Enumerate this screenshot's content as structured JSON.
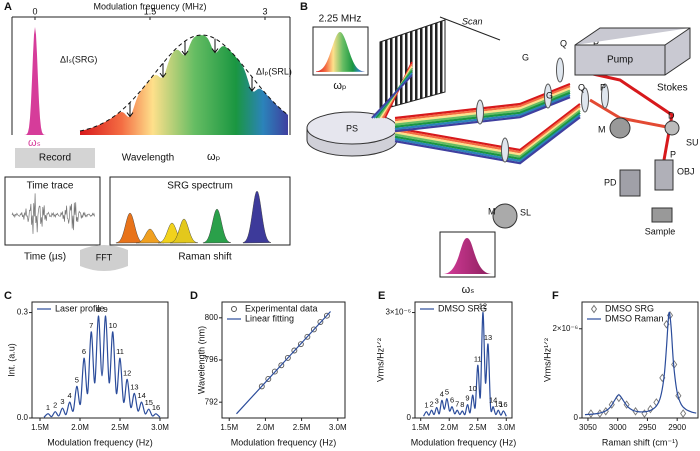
{
  "panel_a": {
    "letter": "A",
    "axis_title": "Modulation frequency (MHz)",
    "axis_ticks": [
      "0",
      "1.5",
      "3"
    ],
    "srg_label": "ΔIₛ(SRG)",
    "srl_label": "ΔIₚ(SRL)",
    "omega_s": "ωₛ",
    "record": "Record",
    "wavelength": "Wavelength",
    "omega_p": "ωₚ",
    "time_trace": "Time trace",
    "time_axis": "Time (µs)",
    "fft": "FFT",
    "srg_spectrum": "SRG spectrum",
    "raman_shift": "Raman shift"
  },
  "panel_b": {
    "letter": "B",
    "labels": [
      "2.25 MHz",
      "ωₚ",
      "Scan",
      "PS",
      "M",
      "SL",
      "G",
      "Q",
      "P",
      "Pump",
      "Stokes",
      "G",
      "Q",
      "P",
      "M",
      "D",
      "SU",
      "P",
      "OBJ",
      "PD",
      "Sample",
      "ωₛ"
    ]
  },
  "chart_data": [
    {
      "type": "line",
      "letter": "C",
      "xlabel": "Modulation frequency (Hz)",
      "ylabel": "Int. (a.u)",
      "xlim": [
        1400000,
        3100000
      ],
      "xticks": [
        {
          "value": 1500000,
          "label": "1.5M"
        },
        {
          "value": 2000000,
          "label": "2.0M"
        },
        {
          "value": 2500000,
          "label": "2.5M"
        },
        {
          "value": 3000000,
          "label": "3.0M"
        }
      ],
      "ylim": [
        0,
        0.33
      ],
      "yticks": [
        {
          "value": 0,
          "label": "0.0"
        },
        0.3
      ],
      "legend": "upper left",
      "annotations": [
        "1",
        "2",
        "3",
        "4",
        "5",
        "6",
        "7",
        "8",
        "9",
        "10",
        "11",
        "12",
        "13",
        "14",
        "15",
        "16"
      ],
      "series": [
        {
          "name": "Laser profile",
          "type": "line",
          "color": "#2b4c9b",
          "x": [
            1550000,
            1600000,
            1645000,
            1690000,
            1735000,
            1780000,
            1825000,
            1870000,
            1915000,
            1960000,
            2005000,
            2050000,
            2095000,
            2140000,
            2185000,
            2230000,
            2275000,
            2320000,
            2365000,
            2410000,
            2455000,
            2500000,
            2545000,
            2590000,
            2635000,
            2680000,
            2725000,
            2770000,
            2815000,
            2860000,
            2905000,
            2950000,
            3000000
          ],
          "values": [
            0.002,
            0.012,
            0.004,
            0.018,
            0.006,
            0.028,
            0.01,
            0.045,
            0.02,
            0.09,
            0.04,
            0.17,
            0.07,
            0.245,
            0.1,
            0.29,
            0.12,
            0.29,
            0.1,
            0.245,
            0.07,
            0.17,
            0.045,
            0.11,
            0.03,
            0.07,
            0.02,
            0.045,
            0.012,
            0.025,
            0.006,
            0.012,
            0.002
          ]
        }
      ]
    },
    {
      "type": "scatter",
      "letter": "D",
      "xlabel": "Modulation frequency (Hz)",
      "ylabel": "Wavelength (nm)",
      "xlim": [
        1400000,
        3100000
      ],
      "xticks": [
        {
          "value": 1500000,
          "label": "1.5M"
        },
        {
          "value": 2000000,
          "label": "2.0M"
        },
        {
          "value": 2500000,
          "label": "2.5M"
        },
        {
          "value": 3000000,
          "label": "3.0M"
        }
      ],
      "ylim": [
        790.5,
        801.5
      ],
      "yticks": [
        792,
        796,
        800
      ],
      "legend": "upper left",
      "series": [
        {
          "name": "Experimental data",
          "type": "scatter",
          "marker": "circle",
          "color": "#555555",
          "x": [
            1950000,
            2040000,
            2130000,
            2220000,
            2310000,
            2400000,
            2490000,
            2580000,
            2670000,
            2760000,
            2850000
          ],
          "values": [
            793.5,
            794.2,
            794.9,
            795.5,
            796.2,
            796.9,
            797.5,
            798.2,
            798.9,
            799.6,
            800.2
          ]
        },
        {
          "name": "Linear fitting",
          "type": "line",
          "color": "#2b4c9b",
          "x": [
            1600000,
            2900000
          ],
          "values": [
            790.9,
            800.6
          ]
        }
      ]
    },
    {
      "type": "line",
      "letter": "E",
      "xlabel": "Modulation frequency (Hz)",
      "ylabel": "Vrms/Hz¹ᐟ²",
      "xlim": [
        1400000,
        3100000
      ],
      "xticks": [
        {
          "value": 1500000,
          "label": "1.5M"
        },
        {
          "value": 2000000,
          "label": "2.0M"
        },
        {
          "value": 2500000,
          "label": "2.5M"
        },
        {
          "value": 3000000,
          "label": "3.0M"
        }
      ],
      "ylim": [
        0,
        3.3e-06
      ],
      "yticks": [
        0,
        {
          "value": 3e-06,
          "label": "3×10⁻⁶"
        }
      ],
      "legend": "upper left",
      "annotations": [
        "1",
        "2",
        "3",
        "4",
        "5",
        "6",
        "7",
        "8",
        "9",
        "10",
        "11",
        "12",
        "13",
        "14",
        "15",
        "16"
      ],
      "series": [
        {
          "name": "DMSO SRG",
          "type": "line",
          "color": "#2b4c9b",
          "x": [
            1550000,
            1600000,
            1645000,
            1690000,
            1735000,
            1780000,
            1825000,
            1870000,
            1915000,
            1960000,
            2005000,
            2050000,
            2095000,
            2140000,
            2185000,
            2230000,
            2275000,
            2320000,
            2365000,
            2410000,
            2455000,
            2500000,
            2545000,
            2590000,
            2635000,
            2680000,
            2725000,
            2770000,
            2815000,
            2860000,
            2905000,
            2950000,
            3000000
          ],
          "values": [
            5e-08,
            1.8e-07,
            8e-08,
            2.2e-07,
            1e-07,
            3e-07,
            1.2e-07,
            5e-07,
            2.5e-07,
            5.5e-07,
            2e-07,
            3.2e-07,
            1.2e-07,
            2.2e-07,
            1e-07,
            2e-07,
            1e-07,
            3.8e-07,
            1.5e-07,
            6.5e-07,
            3e-07,
            1.5e-06,
            6e-07,
            3e-06,
            1e-06,
            2.1e-06,
            3e-07,
            3.2e-07,
            1e-07,
            2.2e-07,
            8e-08,
            2e-07,
            5e-08
          ]
        }
      ]
    },
    {
      "type": "scatter",
      "letter": "F",
      "xlabel": "Raman shift (cm⁻¹)",
      "ylabel": "Vrms/Hz¹ᐟ²",
      "xlim": [
        3060,
        2865
      ],
      "xticks": [
        3050,
        3000,
        2950,
        2900
      ],
      "ylim": [
        0,
        2.6e-06
      ],
      "yticks": [
        0,
        {
          "value": 2e-06,
          "label": "2×10⁻⁶"
        }
      ],
      "legend": "upper left",
      "series": [
        {
          "name": "DMSO SRG",
          "type": "scatter",
          "marker": "diamond",
          "color": "#777777",
          "x": [
            3045,
            3030,
            3020,
            3010,
            2998,
            2985,
            2970,
            2955,
            2945,
            2935,
            2925,
            2918,
            2912,
            2905,
            2898,
            2890
          ],
          "values": [
            1e-07,
            1e-07,
            1.5e-07,
            3e-07,
            4.5e-07,
            3e-07,
            1.5e-07,
            1e-07,
            2e-07,
            3.5e-07,
            9e-07,
            2.1e-06,
            2.3e-06,
            1.2e-06,
            5e-07,
            1e-07
          ]
        },
        {
          "name": "DMSO Raman",
          "type": "line",
          "color": "#2b4c9b",
          "x": [
            3055,
            3040,
            3030,
            3020,
            3012,
            3005,
            2998,
            2990,
            2983,
            2975,
            2965,
            2955,
            2945,
            2935,
            2928,
            2922,
            2918,
            2915,
            2913,
            2910,
            2906,
            2900,
            2893,
            2885,
            2875,
            2868
          ],
          "values": [
            7.5e-08,
            9e-08,
            1.1e-07,
            1.6e-07,
            2.5e-07,
            4e-07,
            5.2e-07,
            3.8e-07,
            2.5e-07,
            1.75e-07,
            1.4e-07,
            1.4e-07,
            1.7e-07,
            2.7e-07,
            4.7e-07,
            9.3e-07,
            1.58e-06,
            2.19e-06,
            2.36e-06,
            2e-06,
            1.2e-06,
            5.7e-07,
            3e-07,
            1.9e-07,
            1.3e-07,
            1.1e-07
          ]
        }
      ]
    }
  ]
}
